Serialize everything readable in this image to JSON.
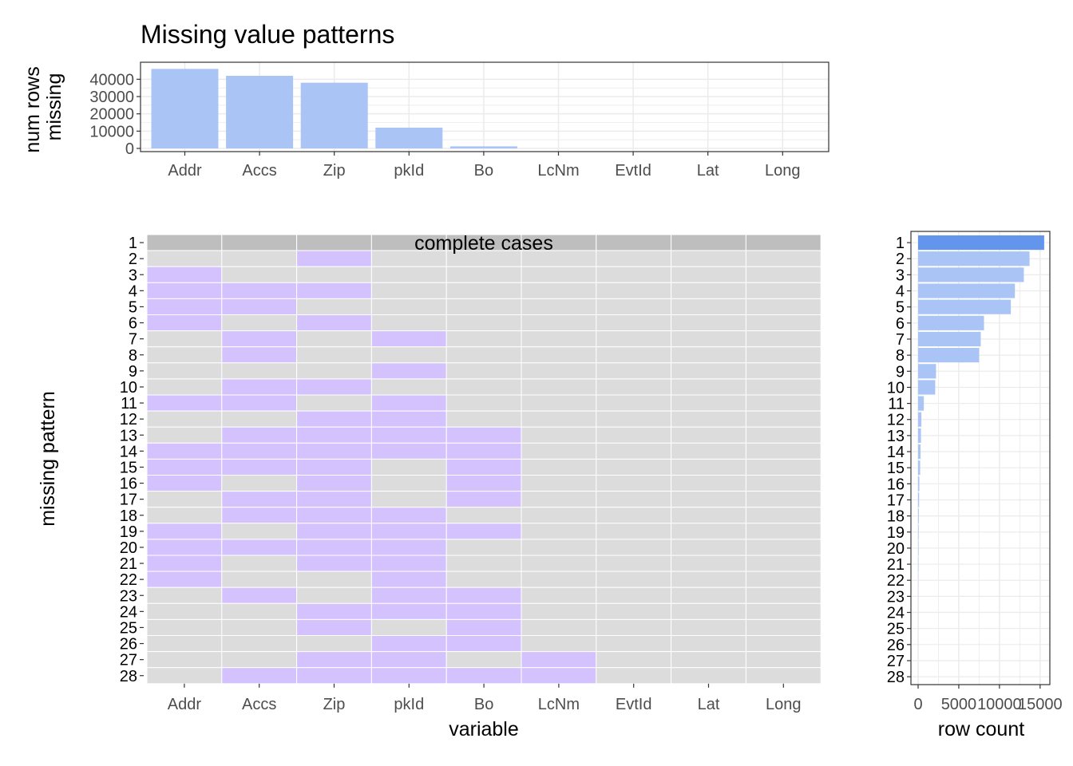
{
  "title": "Missing value patterns",
  "colors": {
    "missing": "#d4c2ff",
    "present": "#dcdcdc",
    "complete": "#bebebe",
    "bar": "#a9c4f5",
    "bar_highlight": "#6495ed",
    "grid": "#ebebeb",
    "panel_border": "#333333"
  },
  "chart_data": [
    {
      "type": "bar",
      "name": "top",
      "title": "Missing value patterns",
      "xlabel": "",
      "ylabel": "num rows\nmissing",
      "categories": [
        "Addr",
        "Accs",
        "Zip",
        "pkId",
        "Bo",
        "LcNm",
        "EvtId",
        "Lat",
        "Long"
      ],
      "values": [
        46000,
        42000,
        38000,
        12000,
        1200,
        0,
        0,
        0,
        0
      ],
      "yticks": [
        0,
        10000,
        20000,
        30000,
        40000
      ],
      "ylim": [
        0,
        48000
      ],
      "grid": true
    },
    {
      "type": "heatmap",
      "name": "main",
      "xlabel": "variable",
      "ylabel": "missing pattern",
      "columns": [
        "Addr",
        "Accs",
        "Zip",
        "pkId",
        "Bo",
        "LcNm",
        "EvtId",
        "Lat",
        "Long"
      ],
      "rows": [
        "1",
        "2",
        "3",
        "4",
        "5",
        "6",
        "7",
        "8",
        "9",
        "10",
        "11",
        "12",
        "13",
        "14",
        "15",
        "16",
        "17",
        "18",
        "19",
        "20",
        "21",
        "22",
        "23",
        "24",
        "25",
        "26",
        "27",
        "28"
      ],
      "complete_case_row": 1,
      "annotation": "complete cases",
      "matrix": [
        [
          0,
          0,
          0,
          0,
          0,
          0,
          0,
          0,
          0
        ],
        [
          0,
          0,
          1,
          0,
          0,
          0,
          0,
          0,
          0
        ],
        [
          1,
          0,
          0,
          0,
          0,
          0,
          0,
          0,
          0
        ],
        [
          1,
          1,
          1,
          0,
          0,
          0,
          0,
          0,
          0
        ],
        [
          1,
          1,
          0,
          0,
          0,
          0,
          0,
          0,
          0
        ],
        [
          1,
          0,
          1,
          0,
          0,
          0,
          0,
          0,
          0
        ],
        [
          0,
          1,
          0,
          1,
          0,
          0,
          0,
          0,
          0
        ],
        [
          0,
          1,
          0,
          0,
          0,
          0,
          0,
          0,
          0
        ],
        [
          0,
          0,
          0,
          1,
          0,
          0,
          0,
          0,
          0
        ],
        [
          0,
          1,
          1,
          0,
          0,
          0,
          0,
          0,
          0
        ],
        [
          1,
          1,
          0,
          1,
          0,
          0,
          0,
          0,
          0
        ],
        [
          0,
          0,
          1,
          1,
          0,
          0,
          0,
          0,
          0
        ],
        [
          0,
          1,
          1,
          1,
          1,
          0,
          0,
          0,
          0
        ],
        [
          1,
          1,
          1,
          1,
          1,
          0,
          0,
          0,
          0
        ],
        [
          1,
          1,
          1,
          0,
          1,
          0,
          0,
          0,
          0
        ],
        [
          1,
          0,
          1,
          0,
          1,
          0,
          0,
          0,
          0
        ],
        [
          0,
          1,
          1,
          0,
          1,
          0,
          0,
          0,
          0
        ],
        [
          0,
          1,
          1,
          1,
          0,
          0,
          0,
          0,
          0
        ],
        [
          1,
          0,
          1,
          1,
          1,
          0,
          0,
          0,
          0
        ],
        [
          1,
          1,
          1,
          1,
          0,
          0,
          0,
          0,
          0
        ],
        [
          1,
          0,
          1,
          1,
          0,
          0,
          0,
          0,
          0
        ],
        [
          1,
          0,
          0,
          1,
          0,
          0,
          0,
          0,
          0
        ],
        [
          0,
          1,
          0,
          1,
          1,
          0,
          0,
          0,
          0
        ],
        [
          0,
          0,
          1,
          1,
          1,
          0,
          0,
          0,
          0
        ],
        [
          0,
          0,
          1,
          0,
          1,
          0,
          0,
          0,
          0
        ],
        [
          0,
          0,
          0,
          1,
          1,
          0,
          0,
          0,
          0
        ],
        [
          0,
          0,
          1,
          1,
          0,
          1,
          0,
          0,
          0
        ],
        [
          0,
          1,
          1,
          1,
          1,
          1,
          0,
          0,
          0
        ]
      ]
    },
    {
      "type": "bar",
      "name": "right",
      "orientation": "horizontal",
      "xlabel": "row count",
      "categories": [
        "1",
        "2",
        "3",
        "4",
        "5",
        "6",
        "7",
        "8",
        "9",
        "10",
        "11",
        "12",
        "13",
        "14",
        "15",
        "16",
        "17",
        "18",
        "19",
        "20",
        "21",
        "22",
        "23",
        "24",
        "25",
        "26",
        "27",
        "28"
      ],
      "values": [
        15500,
        13700,
        13000,
        11900,
        11400,
        8100,
        7700,
        7500,
        2200,
        2100,
        700,
        400,
        350,
        300,
        250,
        150,
        120,
        80,
        60,
        50,
        40,
        20,
        15,
        10,
        8,
        5,
        3,
        2
      ],
      "highlight_index": 0,
      "xticks": [
        0,
        5000,
        10000,
        15000
      ],
      "xlim": [
        0,
        16000
      ],
      "grid": true
    }
  ]
}
